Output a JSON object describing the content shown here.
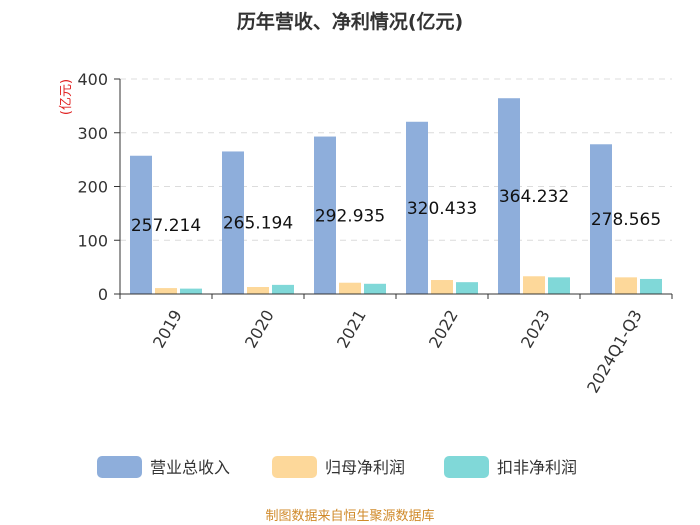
{
  "chart_data": {
    "type": "bar",
    "title": "历年营收、净利情况(亿元)",
    "ylabel": "(亿元)",
    "ylim": [
      0,
      400
    ],
    "yticks": [
      0,
      100,
      200,
      300,
      400
    ],
    "categories": [
      "2019",
      "2020",
      "2021",
      "2022",
      "2023",
      "2024Q1-Q3"
    ],
    "series": [
      {
        "name": "营业总收入",
        "color": "#8eaedb",
        "values": [
          257.214,
          265.194,
          292.935,
          320.433,
          364.232,
          278.565
        ],
        "labels": [
          "257.214",
          "265.194",
          "292.935",
          "320.433",
          "364.232",
          "278.565"
        ]
      },
      {
        "name": "归母净利润",
        "color": "#fdd89a",
        "values": [
          11,
          13,
          21,
          26,
          33,
          31
        ]
      },
      {
        "name": "扣非净利润",
        "color": "#80d8d8",
        "values": [
          10,
          17,
          19,
          22,
          31,
          28
        ]
      }
    ],
    "grid": true,
    "legend_position": "bottom",
    "source": "制图数据来自恒生聚源数据库"
  }
}
